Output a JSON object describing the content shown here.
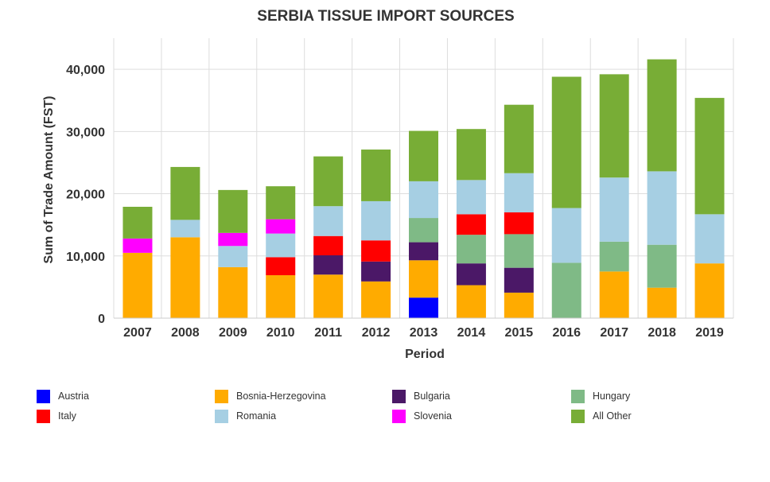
{
  "chart_data": {
    "type": "bar",
    "stacked": true,
    "title": "SERBIA TISSUE IMPORT SOURCES",
    "xlabel": "Period",
    "ylabel": "Sum of Trade Amount (FST)",
    "ylim": [
      0,
      45000
    ],
    "yticks": [
      0,
      10000,
      20000,
      30000,
      40000
    ],
    "ytick_labels": [
      "0",
      "10,000",
      "20,000",
      "30,000",
      "40,000"
    ],
    "grid": true,
    "legend_position": "bottom",
    "categories": [
      "2007",
      "2008",
      "2009",
      "2010",
      "2011",
      "2012",
      "2013",
      "2014",
      "2015",
      "2016",
      "2017",
      "2018",
      "2019"
    ],
    "series": [
      {
        "name": "Austria",
        "color": "#0000ff",
        "values": [
          0,
          0,
          0,
          0,
          0,
          0,
          3300,
          0,
          0,
          0,
          0,
          0,
          0
        ]
      },
      {
        "name": "Bosnia-Herzegovina",
        "color": "#ffab00",
        "values": [
          10500,
          13000,
          8200,
          6900,
          7000,
          5900,
          6000,
          5300,
          4100,
          0,
          7500,
          4900,
          8800
        ]
      },
      {
        "name": "Bulgaria",
        "color": "#4b1867",
        "values": [
          0,
          0,
          0,
          0,
          3100,
          3200,
          2900,
          3500,
          4000,
          0,
          0,
          0,
          0
        ]
      },
      {
        "name": "Hungary",
        "color": "#7fba86",
        "values": [
          0,
          0,
          0,
          0,
          0,
          0,
          3900,
          4600,
          5400,
          8900,
          4800,
          6900,
          0
        ]
      },
      {
        "name": "Italy",
        "color": "#ff0000",
        "values": [
          0,
          0,
          0,
          2900,
          3100,
          3400,
          0,
          3300,
          3500,
          0,
          0,
          0,
          0
        ]
      },
      {
        "name": "Romania",
        "color": "#a6cfe3",
        "values": [
          0,
          2800,
          3400,
          3800,
          4800,
          6300,
          5900,
          5500,
          6300,
          8800,
          10300,
          11800,
          7900
        ]
      },
      {
        "name": "Slovenia",
        "color": "#ff00ff",
        "values": [
          2300,
          0,
          2100,
          2300,
          0,
          0,
          0,
          0,
          0,
          0,
          0,
          0,
          0
        ]
      },
      {
        "name": "All Other",
        "color": "#78ad36",
        "values": [
          5100,
          8500,
          6900,
          5300,
          8000,
          8300,
          8100,
          8200,
          11000,
          21100,
          16600,
          18000,
          18700
        ]
      }
    ]
  }
}
